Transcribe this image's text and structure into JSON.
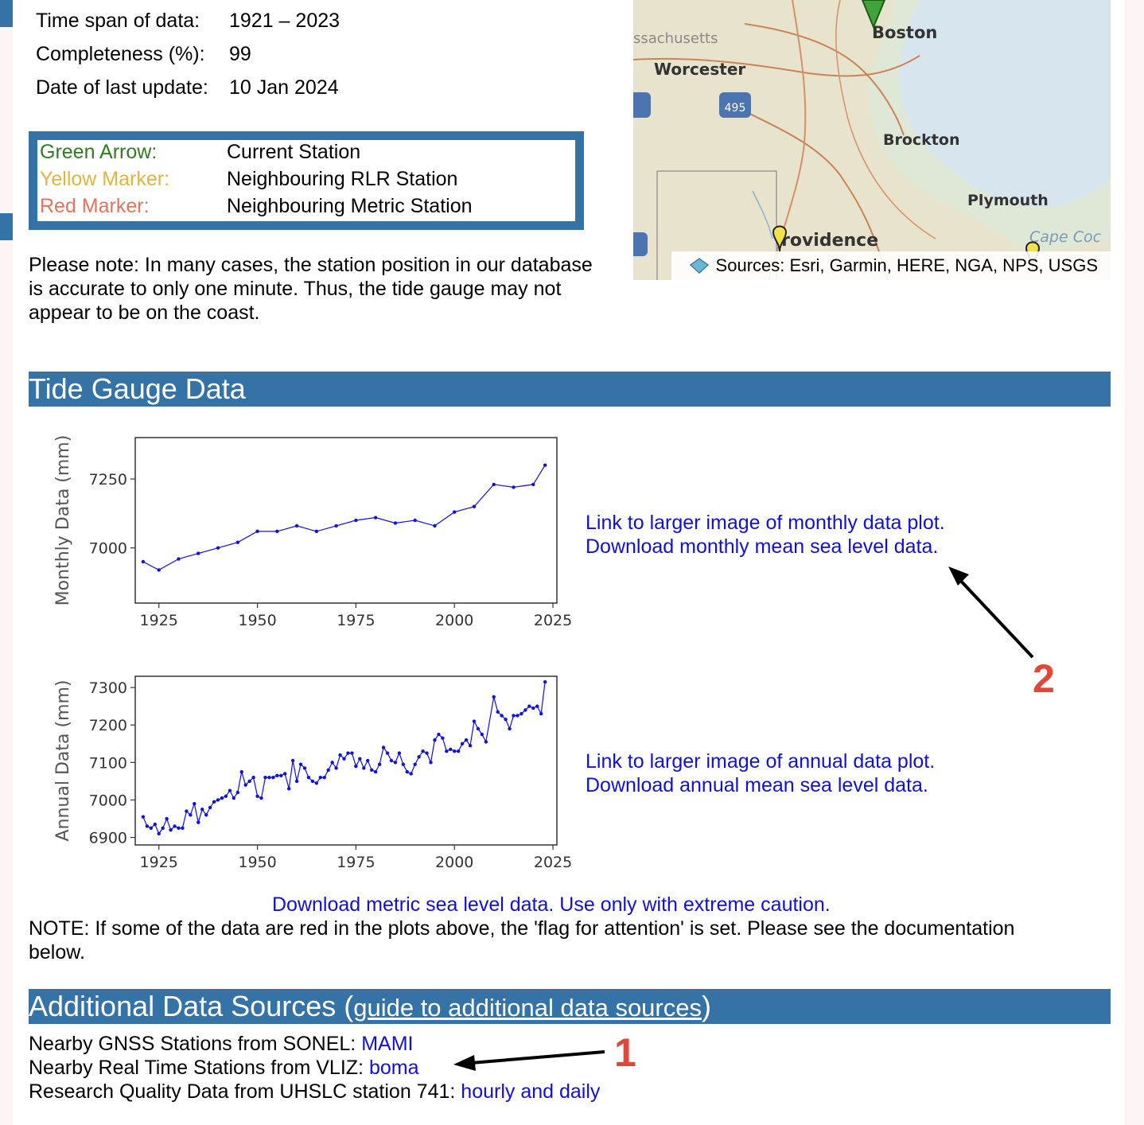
{
  "station_meta": {
    "time_span": {
      "label": "Time span of data:",
      "value": "1921 – 2023"
    },
    "completeness": {
      "label": "Completeness (%):",
      "value": "99"
    },
    "last_update": {
      "label": "Date of last update:",
      "value": "10 Jan 2024"
    }
  },
  "legend": {
    "green": {
      "key": "Green Arrow:",
      "value": "Current Station",
      "color": "#2e7d1f"
    },
    "yellow": {
      "key": "Yellow Marker:",
      "value": "Neighbouring RLR Station",
      "color": "#e3b43a"
    },
    "red": {
      "key": "Red Marker:",
      "value": "Neighbouring Metric Station",
      "color": "#e5735c"
    }
  },
  "position_note": {
    "line1": "Please note: In many cases, the station position in our database",
    "line2": "is accurate to only one minute. Thus, the tide gauge may not",
    "line3": "appear to be on the coast."
  },
  "map": {
    "labels": {
      "massachusetts": "ssachusetts",
      "boston": "Boston",
      "worcester": "Worcester",
      "brockton": "Brockton",
      "plymouth": "Plymouth",
      "providence": "rovidence",
      "cape_cod": "Cape Coc",
      "i495": "495"
    },
    "attribution": "Sources: Esri, Garmin, HERE, NGA, NPS, USGS"
  },
  "tide_section": {
    "title": "Tide Gauge Data"
  },
  "chart_data": [
    {
      "type": "line",
      "ylabel": "Monthly Data (mm)",
      "xlim": [
        1919,
        2026
      ],
      "ylim": [
        6800,
        7400
      ],
      "xticks": [
        1925,
        1950,
        1975,
        2000,
        2025
      ],
      "yticks": [
        7000,
        7250
      ],
      "color": "#1010e0",
      "x": [
        1921,
        1925,
        1930,
        1935,
        1940,
        1945,
        1950,
        1955,
        1960,
        1965,
        1970,
        1975,
        1980,
        1985,
        1990,
        1995,
        2000,
        2005,
        2010,
        2015,
        2020,
        2023
      ],
      "y": [
        6950,
        6920,
        6960,
        6980,
        7000,
        7020,
        7060,
        7060,
        7080,
        7060,
        7080,
        7100,
        7110,
        7090,
        7100,
        7080,
        7130,
        7150,
        7230,
        7220,
        7230,
        7300
      ]
    },
    {
      "type": "line",
      "ylabel": "Annual Data (mm)",
      "xlim": [
        1919,
        2026
      ],
      "ylim": [
        6880,
        7330
      ],
      "xticks": [
        1925,
        1950,
        1975,
        2000,
        2025
      ],
      "yticks": [
        6900,
        7000,
        7100,
        7200,
        7300
      ],
      "color": "#1010e0",
      "x": [
        1921,
        1922,
        1923,
        1924,
        1925,
        1926,
        1927,
        1928,
        1929,
        1930,
        1931,
        1932,
        1933,
        1934,
        1935,
        1936,
        1937,
        1938,
        1939,
        1940,
        1941,
        1942,
        1943,
        1944,
        1945,
        1946,
        1947,
        1948,
        1949,
        1950,
        1951,
        1952,
        1953,
        1954,
        1955,
        1956,
        1957,
        1958,
        1959,
        1960,
        1961,
        1962,
        1963,
        1964,
        1965,
        1966,
        1967,
        1968,
        1969,
        1970,
        1971,
        1972,
        1973,
        1974,
        1975,
        1976,
        1977,
        1978,
        1979,
        1980,
        1981,
        1982,
        1983,
        1984,
        1985,
        1986,
        1987,
        1988,
        1989,
        1990,
        1991,
        1992,
        1993,
        1994,
        1995,
        1996,
        1997,
        1998,
        1999,
        2000,
        2001,
        2002,
        2003,
        2004,
        2005,
        2006,
        2007,
        2008,
        2010,
        2011,
        2012,
        2013,
        2014,
        2015,
        2016,
        2017,
        2018,
        2019,
        2020,
        2021,
        2022,
        2023
      ],
      "y": [
        6955,
        6930,
        6925,
        6935,
        6910,
        6925,
        6950,
        6920,
        6930,
        6925,
        6925,
        6970,
        6960,
        6990,
        6940,
        6975,
        6960,
        6980,
        6995,
        7000,
        7005,
        7010,
        7025,
        7005,
        7020,
        7075,
        7040,
        7050,
        7060,
        7010,
        7005,
        7060,
        7060,
        7060,
        7065,
        7065,
        7070,
        7030,
        7105,
        7050,
        7095,
        7085,
        7060,
        7050,
        7045,
        7060,
        7060,
        7080,
        7100,
        7085,
        7120,
        7110,
        7125,
        7125,
        7090,
        7110,
        7085,
        7105,
        7080,
        7075,
        7095,
        7140,
        7125,
        7105,
        7100,
        7125,
        7095,
        7075,
        7070,
        7095,
        7115,
        7130,
        7125,
        7100,
        7160,
        7175,
        7165,
        7130,
        7135,
        7130,
        7130,
        7150,
        7160,
        7145,
        7210,
        7190,
        7175,
        7155,
        7275,
        7235,
        7225,
        7215,
        7190,
        7225,
        7225,
        7230,
        7240,
        7250,
        7245,
        7250,
        7230,
        7315
      ]
    }
  ],
  "plot_links": {
    "monthly_image": "Link to larger image of monthly data plot.",
    "monthly_download": "Download monthly mean sea level data.",
    "annual_image": "Link to larger image of annual data plot.",
    "annual_download": "Download annual mean sea level data.",
    "metric_download": "Download metric sea level data. Use only with extreme caution."
  },
  "flag_note": {
    "line1": "NOTE: If some of the data are red in the plots above, the 'flag for attention' is set. Please see the documentation",
    "line2": "below."
  },
  "annotations": {
    "n1": "1",
    "n2": "2"
  },
  "additional_section": {
    "title": "Additional Data Sources",
    "paren_open": " (",
    "guide_link": "guide to additional data sources",
    "paren_close": ")"
  },
  "sources": {
    "gnss": {
      "label": "Nearby GNSS Stations from SONEL: ",
      "link": "MAMI"
    },
    "vliz": {
      "label": "Nearby Real Time Stations from VLIZ: ",
      "link": "boma"
    },
    "uhslc": {
      "label": "Research Quality Data from UHSLC station 741: ",
      "link": "hourly and daily"
    }
  }
}
